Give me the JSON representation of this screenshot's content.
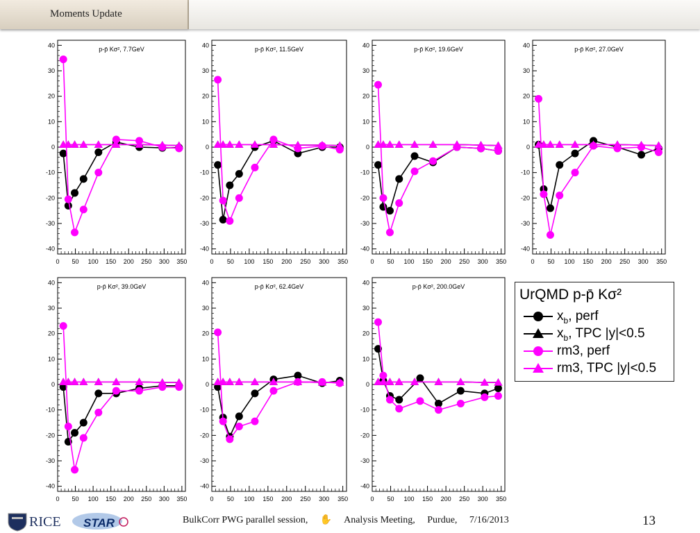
{
  "header": {
    "tab_label": "Moments Update"
  },
  "footer": {
    "session": "BulkCorr PWG parallel session,",
    "meeting": "Analysis Meeting,",
    "place": "Purdue,",
    "date": "7/16/2013",
    "page_number": "13",
    "logo_left": "RICE",
    "logo_right": "STAR"
  },
  "legend": {
    "title": "UrQMD p-p̄ Kσ²",
    "items": [
      {
        "label": "x",
        "sub": "b",
        "rest": ", perf",
        "marker": "circle",
        "color": "#000000"
      },
      {
        "label": "x",
        "sub": "b",
        "rest": ", TPC |y|<0.5",
        "marker": "triangle",
        "color": "#000000"
      },
      {
        "label": "rm3, perf",
        "sub": "",
        "rest": "",
        "marker": "circle",
        "color": "#ff00ff"
      },
      {
        "label": "rm3, TPC |y|<0.5",
        "sub": "",
        "rest": "",
        "marker": "triangle",
        "color": "#ff00ff"
      }
    ]
  },
  "chart_data": [
    {
      "type": "line",
      "title": "p-p̄ Kσ², 7.7GeV",
      "xlim": [
        0,
        360
      ],
      "ylim": [
        -42,
        42
      ],
      "xticks": [
        0,
        50,
        100,
        150,
        200,
        250,
        300,
        350
      ],
      "yticks": [
        -40,
        -30,
        -20,
        -10,
        0,
        10,
        20,
        30,
        40
      ],
      "series": [
        {
          "name": "x_b, perf",
          "marker": "circle",
          "color": "#000000",
          "x": [
            16,
            30,
            48,
            73,
            115,
            165,
            230,
            295,
            342
          ],
          "y": [
            -2.5,
            -23,
            -18,
            -12.5,
            -2,
            2,
            0,
            -0.3,
            -0.2
          ]
        },
        {
          "name": "x_b, TPC |y|<0.5",
          "marker": "triangle",
          "color": "#000000",
          "x": [
            16,
            30,
            48,
            73,
            115,
            165,
            230,
            295,
            342
          ],
          "y": [
            1,
            1,
            1,
            1,
            1,
            1,
            1,
            0.8,
            0.6
          ]
        },
        {
          "name": "rm3, perf",
          "marker": "circle",
          "color": "#ff00ff",
          "x": [
            16,
            30,
            48,
            73,
            115,
            165,
            230,
            295,
            342
          ],
          "y": [
            34.5,
            -20.5,
            -33.5,
            -24.5,
            -10,
            3,
            2.5,
            0,
            -0.5
          ]
        },
        {
          "name": "rm3, TPC |y|<0.5",
          "marker": "triangle",
          "color": "#ff00ff",
          "x": [
            16,
            30,
            48,
            73,
            115,
            165,
            230,
            295,
            342
          ],
          "y": [
            1,
            1,
            1,
            1,
            1,
            1,
            1,
            0.8,
            0.6
          ]
        }
      ]
    },
    {
      "type": "line",
      "title": "p-p̄ Kσ², 11.5GeV",
      "xlim": [
        0,
        360
      ],
      "ylim": [
        -42,
        42
      ],
      "xticks": [
        0,
        50,
        100,
        150,
        200,
        250,
        300,
        350
      ],
      "yticks": [
        -40,
        -30,
        -20,
        -10,
        0,
        10,
        20,
        30,
        40
      ],
      "series": [
        {
          "name": "x_b, perf",
          "marker": "circle",
          "color": "#000000",
          "x": [
            16,
            30,
            48,
            73,
            115,
            165,
            230,
            295,
            342
          ],
          "y": [
            -7,
            -28.5,
            -15,
            -10.5,
            0,
            2.5,
            -2.5,
            0,
            0
          ]
        },
        {
          "name": "x_b, TPC |y|<0.5",
          "marker": "triangle",
          "color": "#000000",
          "x": [
            16,
            30,
            48,
            73,
            115,
            165,
            230,
            295,
            342
          ],
          "y": [
            1,
            1,
            1,
            1,
            1,
            1,
            0.8,
            0.8,
            0.6
          ]
        },
        {
          "name": "rm3, perf",
          "marker": "circle",
          "color": "#ff00ff",
          "x": [
            16,
            30,
            48,
            73,
            115,
            165,
            230,
            295,
            342
          ],
          "y": [
            26.5,
            -21,
            -29,
            -20,
            -8,
            3,
            -0.5,
            0.5,
            -1
          ]
        },
        {
          "name": "rm3, TPC |y|<0.5",
          "marker": "triangle",
          "color": "#ff00ff",
          "x": [
            16,
            30,
            48,
            73,
            115,
            165,
            230,
            295,
            342
          ],
          "y": [
            1,
            1,
            1,
            1,
            1,
            1,
            0.8,
            0.8,
            0.6
          ]
        }
      ]
    },
    {
      "type": "line",
      "title": "p-p̄ Kσ², 19.6GeV",
      "xlim": [
        0,
        360
      ],
      "ylim": [
        -42,
        42
      ],
      "xticks": [
        0,
        50,
        100,
        150,
        200,
        250,
        300,
        350
      ],
      "yticks": [
        -40,
        -30,
        -20,
        -10,
        0,
        10,
        20,
        30,
        40
      ],
      "series": [
        {
          "name": "x_b, perf",
          "marker": "circle",
          "color": "#000000",
          "x": [
            16,
            30,
            48,
            73,
            115,
            165,
            230,
            295,
            342
          ],
          "y": [
            -7,
            -23.5,
            -25,
            -12.5,
            -3.5,
            -6,
            0,
            -0.5,
            -1.5
          ]
        },
        {
          "name": "x_b, TPC |y|<0.5",
          "marker": "triangle",
          "color": "#000000",
          "x": [
            16,
            30,
            48,
            73,
            115,
            165,
            230,
            295,
            342
          ],
          "y": [
            1,
            1,
            1,
            1,
            1,
            1,
            1,
            0.8,
            0.6
          ]
        },
        {
          "name": "rm3, perf",
          "marker": "circle",
          "color": "#ff00ff",
          "x": [
            16,
            30,
            48,
            73,
            115,
            165,
            230,
            295,
            342
          ],
          "y": [
            24.5,
            -20,
            -33.5,
            -22,
            -9.5,
            -5.5,
            0,
            -0.5,
            -1.5
          ]
        },
        {
          "name": "rm3, TPC |y|<0.5",
          "marker": "triangle",
          "color": "#ff00ff",
          "x": [
            16,
            30,
            48,
            73,
            115,
            165,
            230,
            295,
            342
          ],
          "y": [
            1,
            1,
            1,
            1,
            1,
            1,
            1,
            0.8,
            0.6
          ]
        }
      ]
    },
    {
      "type": "line",
      "title": "p-p̄ Kσ², 27.0GeV",
      "xlim": [
        0,
        360
      ],
      "ylim": [
        -42,
        42
      ],
      "xticks": [
        0,
        50,
        100,
        150,
        200,
        250,
        300,
        350
      ],
      "yticks": [
        -40,
        -30,
        -20,
        -10,
        0,
        10,
        20,
        30,
        40
      ],
      "series": [
        {
          "name": "x_b, perf",
          "marker": "circle",
          "color": "#000000",
          "x": [
            16,
            30,
            48,
            73,
            115,
            165,
            230,
            295,
            342
          ],
          "y": [
            1,
            -16.5,
            -24,
            -7,
            -2.5,
            2.5,
            0,
            -3,
            -0.5
          ]
        },
        {
          "name": "x_b, TPC |y|<0.5",
          "marker": "triangle",
          "color": "#000000",
          "x": [
            16,
            30,
            48,
            73,
            115,
            165,
            230,
            295,
            342
          ],
          "y": [
            1,
            1,
            1,
            1,
            1,
            1,
            1,
            0.8,
            0.6
          ]
        },
        {
          "name": "rm3, perf",
          "marker": "circle",
          "color": "#ff00ff",
          "x": [
            16,
            30,
            48,
            73,
            115,
            165,
            230,
            295,
            342
          ],
          "y": [
            19,
            -18.5,
            -34.5,
            -19,
            -10,
            0.5,
            -0.5,
            0,
            -2
          ]
        },
        {
          "name": "rm3, TPC |y|<0.5",
          "marker": "triangle",
          "color": "#ff00ff",
          "x": [
            16,
            30,
            48,
            73,
            115,
            165,
            230,
            295,
            342
          ],
          "y": [
            1,
            1,
            1,
            1,
            1,
            1,
            1,
            0.8,
            0.6
          ]
        }
      ]
    },
    {
      "type": "line",
      "title": "p-p̄ Kσ², 39.0GeV",
      "xlim": [
        0,
        360
      ],
      "ylim": [
        -42,
        42
      ],
      "xticks": [
        0,
        50,
        100,
        150,
        200,
        250,
        300,
        350
      ],
      "yticks": [
        -40,
        -30,
        -20,
        -10,
        0,
        10,
        20,
        30,
        40
      ],
      "series": [
        {
          "name": "x_b, perf",
          "marker": "circle",
          "color": "#000000",
          "x": [
            16,
            30,
            48,
            73,
            115,
            165,
            230,
            295,
            342
          ],
          "y": [
            -1,
            -22.5,
            -19,
            -15,
            -3.5,
            -3.5,
            -1.5,
            -0.5,
            -0.5
          ]
        },
        {
          "name": "x_b, TPC |y|<0.5",
          "marker": "triangle",
          "color": "#000000",
          "x": [
            16,
            30,
            48,
            73,
            115,
            165,
            230,
            295,
            342
          ],
          "y": [
            1,
            1,
            1,
            1,
            1,
            1,
            1,
            0.8,
            0.8
          ]
        },
        {
          "name": "rm3, perf",
          "marker": "circle",
          "color": "#ff00ff",
          "x": [
            16,
            30,
            48,
            73,
            115,
            165,
            230,
            295,
            342
          ],
          "y": [
            23,
            -16.5,
            -33.5,
            -21,
            -11,
            -2.5,
            -2.5,
            -1,
            -1
          ]
        },
        {
          "name": "rm3, TPC |y|<0.5",
          "marker": "triangle",
          "color": "#ff00ff",
          "x": [
            16,
            30,
            48,
            73,
            115,
            165,
            230,
            295,
            342
          ],
          "y": [
            1,
            1,
            1,
            1,
            1,
            1,
            1,
            0.8,
            0.8
          ]
        }
      ]
    },
    {
      "type": "line",
      "title": "p-p̄ Kσ², 62.4GeV",
      "xlim": [
        0,
        360
      ],
      "ylim": [
        -42,
        42
      ],
      "xticks": [
        0,
        50,
        100,
        150,
        200,
        250,
        300,
        350
      ],
      "yticks": [
        -40,
        -30,
        -20,
        -10,
        0,
        10,
        20,
        30,
        40
      ],
      "series": [
        {
          "name": "x_b, perf",
          "marker": "circle",
          "color": "#000000",
          "x": [
            16,
            30,
            48,
            73,
            115,
            165,
            230,
            295,
            342
          ],
          "y": [
            -1,
            -13,
            -20.5,
            -12.5,
            -3.5,
            2,
            3.5,
            0.5,
            1.5
          ]
        },
        {
          "name": "x_b, TPC |y|<0.5",
          "marker": "triangle",
          "color": "#000000",
          "x": [
            16,
            30,
            48,
            73,
            115,
            165,
            230,
            295,
            342
          ],
          "y": [
            1,
            1,
            1,
            1,
            1,
            1,
            1,
            0.8,
            0.8
          ]
        },
        {
          "name": "rm3, perf",
          "marker": "circle",
          "color": "#ff00ff",
          "x": [
            16,
            30,
            48,
            73,
            115,
            165,
            230,
            295,
            342
          ],
          "y": [
            20.5,
            -14.5,
            -21.5,
            -16.5,
            -14.5,
            -2.5,
            1,
            1,
            0.5
          ]
        },
        {
          "name": "rm3, TPC |y|<0.5",
          "marker": "triangle",
          "color": "#ff00ff",
          "x": [
            16,
            30,
            48,
            73,
            115,
            165,
            230,
            295,
            342
          ],
          "y": [
            1,
            1,
            1,
            1,
            1,
            1,
            1,
            0.8,
            0.8
          ]
        }
      ]
    },
    {
      "type": "line",
      "title": "p-p̄ Kσ², 200.0GeV",
      "xlim": [
        0,
        360
      ],
      "ylim": [
        -42,
        42
      ],
      "xticks": [
        0,
        50,
        100,
        150,
        200,
        250,
        300,
        350
      ],
      "yticks": [
        -40,
        -30,
        -20,
        -10,
        0,
        10,
        20,
        30,
        40
      ],
      "series": [
        {
          "name": "x_b, perf",
          "marker": "circle",
          "color": "#000000",
          "x": [
            16,
            30,
            48,
            73,
            130,
            180,
            240,
            305,
            342
          ],
          "y": [
            14,
            1.5,
            -4.5,
            -6,
            2.5,
            -7.5,
            -2.5,
            -3.5,
            -1.5
          ]
        },
        {
          "name": "x_b, TPC |y|<0.5",
          "marker": "triangle",
          "color": "#000000",
          "x": [
            16,
            30,
            48,
            73,
            115,
            180,
            240,
            305,
            342
          ],
          "y": [
            1,
            1,
            1,
            1,
            1,
            1,
            1,
            0.8,
            0.8
          ]
        },
        {
          "name": "rm3, perf",
          "marker": "circle",
          "color": "#ff00ff",
          "x": [
            16,
            30,
            48,
            73,
            130,
            180,
            240,
            305,
            342
          ],
          "y": [
            24.5,
            3.5,
            -6,
            -9.5,
            -6.5,
            -10,
            -7.5,
            -5,
            -4.5
          ]
        },
        {
          "name": "rm3, TPC |y|<0.5",
          "marker": "triangle",
          "color": "#ff00ff",
          "x": [
            16,
            30,
            48,
            73,
            115,
            180,
            240,
            305,
            342
          ],
          "y": [
            1,
            1,
            1,
            1,
            1,
            1,
            1,
            0.8,
            0.8
          ]
        }
      ]
    }
  ]
}
